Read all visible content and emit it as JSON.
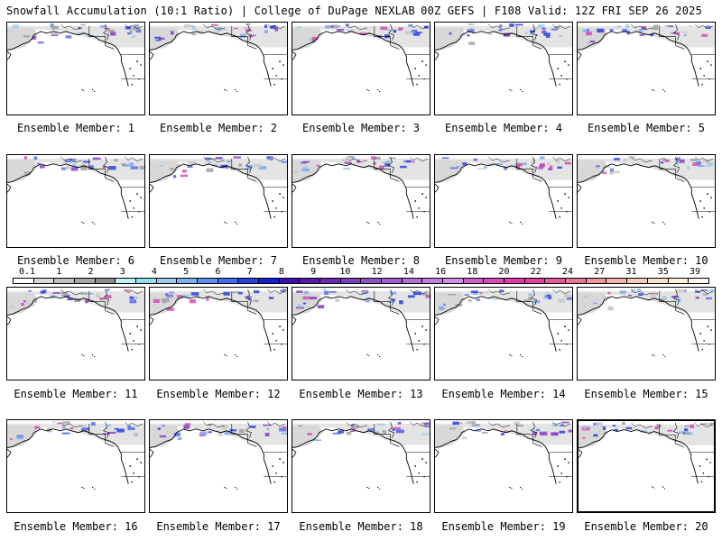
{
  "header": {
    "left": "Snowfall Accumulation (10:1 Ratio) | College of DuPage NEXLAB",
    "right": "00Z GEFS | F108 Valid: 12Z FRI SEP 26 2025"
  },
  "members": [
    {
      "label": "Ensemble Member: 1"
    },
    {
      "label": "Ensemble Member: 2"
    },
    {
      "label": "Ensemble Member: 3"
    },
    {
      "label": "Ensemble Member: 4"
    },
    {
      "label": "Ensemble Member: 5"
    },
    {
      "label": "Ensemble Member: 6"
    },
    {
      "label": "Ensemble Member: 7"
    },
    {
      "label": "Ensemble Member: 8"
    },
    {
      "label": "Ensemble Member: 9"
    },
    {
      "label": "Ensemble Member: 10"
    },
    {
      "label": "Ensemble Member: 11"
    },
    {
      "label": "Ensemble Member: 12"
    },
    {
      "label": "Ensemble Member: 13"
    },
    {
      "label": "Ensemble Member: 14"
    },
    {
      "label": "Ensemble Member: 15"
    },
    {
      "label": "Ensemble Member: 16"
    },
    {
      "label": "Ensemble Member: 17"
    },
    {
      "label": "Ensemble Member: 18"
    },
    {
      "label": "Ensemble Member: 19"
    },
    {
      "label": "Ensemble Member: 20"
    }
  ],
  "colorbar": {
    "ticks": [
      "0.1",
      "1",
      "2",
      "3",
      "4",
      "5",
      "6",
      "7",
      "8",
      "9",
      "10",
      "12",
      "14",
      "16",
      "18",
      "20",
      "22",
      "24",
      "27",
      "31",
      "35",
      "39"
    ],
    "colors": [
      "#ffffff",
      "#d9d9d9",
      "#bfbfbf",
      "#a6a6a6",
      "#8c8c8c",
      "#bdf2f7",
      "#8fe1f2",
      "#9ecae9",
      "#7fb0f0",
      "#5e8ff0",
      "#3f6ef0",
      "#2a3fe0",
      "#1020d0",
      "#3a10b0",
      "#5a18a8",
      "#6d28b0",
      "#7e3ec0",
      "#8f52c8",
      "#a060d0",
      "#b070d8",
      "#c07ee0",
      "#cc8ee8",
      "#d060c8",
      "#d84cb8",
      "#de3ca8",
      "#e0409a",
      "#e45a98",
      "#e8789a",
      "#ec969e",
      "#f0b4a8",
      "#f4cdb8",
      "#f8e2cc",
      "#fdf1e2",
      "#fff8f0"
    ]
  }
}
